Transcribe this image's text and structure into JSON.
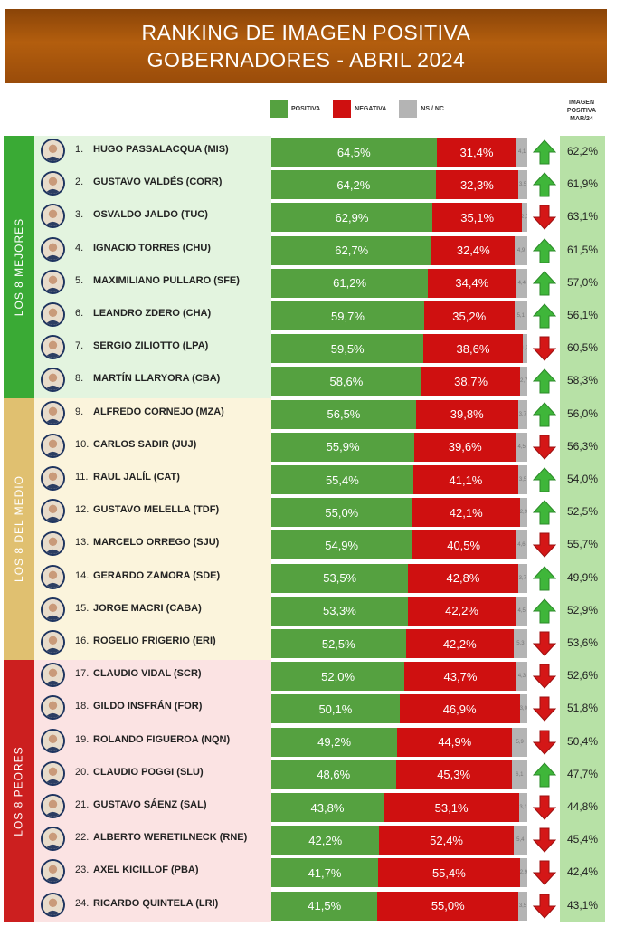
{
  "header": {
    "title_line1": "RANKING DE IMAGEN POSITIVA",
    "title_line2": "GOBERNADORES - ABRIL 2024"
  },
  "colors": {
    "positive": "#55a140",
    "negative": "#cf1010",
    "ns_nc": "#b4b4b4",
    "group_top": "#3aaa35",
    "group_mid": "#e0c070",
    "group_low": "#cc1f1f"
  },
  "groups": [
    {
      "label": "LOS 8 MEJORES",
      "color": "#3aaa35",
      "bg": "#e3f4df"
    },
    {
      "label": "LOS 8 DEL MEDIO",
      "color": "#e0c070",
      "bg": "#fbf4dc"
    },
    {
      "label": "LOS 8 PEORES",
      "color": "#cc1f1f",
      "bg": "#fbe3e3"
    }
  ],
  "chart_data": {
    "type": "bar",
    "stacked": true,
    "orientation": "horizontal",
    "title": "RANKING DE IMAGEN POSITIVA GOBERNADORES - ABRIL 2024",
    "legend": [
      "POSITIVA",
      "NEGATIVA",
      "NS / NC"
    ],
    "prev_column_label": "IMAGEN POSITIVA MAR/24",
    "rows": [
      {
        "rank": "1.",
        "name": "HUGO PASSALACQUA (MIS)",
        "positive": 64.5,
        "negative": 31.4,
        "ns": 4.1,
        "pos_label": "64,5%",
        "neg_label": "31,4%",
        "ns_label": "4,1",
        "trend": "up",
        "prev": "62,2%"
      },
      {
        "rank": "2.",
        "name": "GUSTAVO VALDÉS (CORR)",
        "positive": 64.2,
        "negative": 32.3,
        "ns": 3.5,
        "pos_label": "64,2%",
        "neg_label": "32,3%",
        "ns_label": "3,5",
        "trend": "up",
        "prev": "61,9%"
      },
      {
        "rank": "3.",
        "name": "OSVALDO JALDO (TUC)",
        "positive": 62.9,
        "negative": 35.1,
        "ns": 2.0,
        "pos_label": "62,9%",
        "neg_label": "35,1%",
        "ns_label": "2,0",
        "trend": "down",
        "prev": "63,1%"
      },
      {
        "rank": "4.",
        "name": "IGNACIO TORRES (CHU)",
        "positive": 62.7,
        "negative": 32.4,
        "ns": 4.9,
        "pos_label": "62,7%",
        "neg_label": "32,4%",
        "ns_label": "4,9",
        "trend": "up",
        "prev": "61,5%"
      },
      {
        "rank": "5.",
        "name": "MAXIMILIANO PULLARO (SFE)",
        "positive": 61.2,
        "negative": 34.4,
        "ns": 4.4,
        "pos_label": "61,2%",
        "neg_label": "34,4%",
        "ns_label": "4,4",
        "trend": "up",
        "prev": "57,0%"
      },
      {
        "rank": "6.",
        "name": "LEANDRO ZDERO (CHA)",
        "positive": 59.7,
        "negative": 35.2,
        "ns": 5.1,
        "pos_label": "59,7%",
        "neg_label": "35,2%",
        "ns_label": "5,1",
        "trend": "up",
        "prev": "56,1%"
      },
      {
        "rank": "7.",
        "name": "SERGIO ZILIOTTO (LPA)",
        "positive": 59.5,
        "negative": 38.6,
        "ns": 1.9,
        "pos_label": "59,5%",
        "neg_label": "38,6%",
        "ns_label": "1,9",
        "trend": "down",
        "prev": "60,5%"
      },
      {
        "rank": "8.",
        "name": "MARTÍN LLARYORA (CBA)",
        "positive": 58.6,
        "negative": 38.7,
        "ns": 2.7,
        "pos_label": "58,6%",
        "neg_label": "38,7%",
        "ns_label": "2,7",
        "trend": "up",
        "prev": "58,3%"
      },
      {
        "rank": "9.",
        "name": "ALFREDO CORNEJO (MZA)",
        "positive": 56.5,
        "negative": 39.8,
        "ns": 3.7,
        "pos_label": "56,5%",
        "neg_label": "39,8%",
        "ns_label": "3,7",
        "trend": "up",
        "prev": "56,0%"
      },
      {
        "rank": "10.",
        "name": "CARLOS SADIR (JUJ)",
        "positive": 55.9,
        "negative": 39.6,
        "ns": 4.5,
        "pos_label": "55,9%",
        "neg_label": "39,6%",
        "ns_label": "4,5",
        "trend": "down",
        "prev": "56,3%"
      },
      {
        "rank": "11.",
        "name": "RAUL JALÍL (CAT)",
        "positive": 55.4,
        "negative": 41.1,
        "ns": 3.5,
        "pos_label": "55,4%",
        "neg_label": "41,1%",
        "ns_label": "3,5",
        "trend": "up",
        "prev": "54,0%"
      },
      {
        "rank": "12.",
        "name": "GUSTAVO MELELLA (TDF)",
        "positive": 55.0,
        "negative": 42.1,
        "ns": 2.9,
        "pos_label": "55,0%",
        "neg_label": "42,1%",
        "ns_label": "2,9",
        "trend": "up",
        "prev": "52,5%"
      },
      {
        "rank": "13.",
        "name": "MARCELO ORREGO (SJU)",
        "positive": 54.9,
        "negative": 40.5,
        "ns": 4.6,
        "pos_label": "54,9%",
        "neg_label": "40,5%",
        "ns_label": "4,6",
        "trend": "down",
        "prev": "55,7%"
      },
      {
        "rank": "14.",
        "name": "GERARDO ZAMORA (SDE)",
        "positive": 53.5,
        "negative": 42.8,
        "ns": 3.7,
        "pos_label": "53,5%",
        "neg_label": "42,8%",
        "ns_label": "3,7",
        "trend": "up",
        "prev": "49,9%"
      },
      {
        "rank": "15.",
        "name": "JORGE MACRI (CABA)",
        "positive": 53.3,
        "negative": 42.2,
        "ns": 4.5,
        "pos_label": "53,3%",
        "neg_label": "42,2%",
        "ns_label": "4,5",
        "trend": "up",
        "prev": "52,9%"
      },
      {
        "rank": "16.",
        "name": "ROGELIO FRIGERIO (ERI)",
        "positive": 52.5,
        "negative": 42.2,
        "ns": 5.3,
        "pos_label": "52,5%",
        "neg_label": "42,2%",
        "ns_label": "5,3",
        "trend": "down",
        "prev": "53,6%"
      },
      {
        "rank": "17.",
        "name": "CLAUDIO VIDAL (SCR)",
        "positive": 52.0,
        "negative": 43.7,
        "ns": 4.3,
        "pos_label": "52,0%",
        "neg_label": "43,7%",
        "ns_label": "4,3",
        "trend": "down",
        "prev": "52,6%"
      },
      {
        "rank": "18.",
        "name": "GILDO INSFRÁN (FOR)",
        "positive": 50.1,
        "negative": 46.9,
        "ns": 3.0,
        "pos_label": "50,1%",
        "neg_label": "46,9%",
        "ns_label": "3,0",
        "trend": "down",
        "prev": "51,8%"
      },
      {
        "rank": "19.",
        "name": "ROLANDO FIGUEROA (NQN)",
        "positive": 49.2,
        "negative": 44.9,
        "ns": 5.9,
        "pos_label": "49,2%",
        "neg_label": "44,9%",
        "ns_label": "5,9",
        "trend": "down",
        "prev": "50,4%"
      },
      {
        "rank": "20.",
        "name": "CLAUDIO POGGI (SLU)",
        "positive": 48.6,
        "negative": 45.3,
        "ns": 6.1,
        "pos_label": "48,6%",
        "neg_label": "45,3%",
        "ns_label": "6,1",
        "trend": "up",
        "prev": "47,7%"
      },
      {
        "rank": "21.",
        "name": "GUSTAVO SÁENZ (SAL)",
        "positive": 43.8,
        "negative": 53.1,
        "ns": 3.1,
        "pos_label": "43,8%",
        "neg_label": "53,1%",
        "ns_label": "3,1",
        "trend": "down",
        "prev": "44,8%"
      },
      {
        "rank": "22.",
        "name": "ALBERTO WERETILNECK (RNE)",
        "positive": 42.2,
        "negative": 52.4,
        "ns": 5.4,
        "pos_label": "42,2%",
        "neg_label": "52,4%",
        "ns_label": "5,4",
        "trend": "down",
        "prev": "45,4%"
      },
      {
        "rank": "23.",
        "name": "AXEL KICILLOF (PBA)",
        "positive": 41.7,
        "negative": 55.4,
        "ns": 2.9,
        "pos_label": "41,7%",
        "neg_label": "55,4%",
        "ns_label": "2,9",
        "trend": "down",
        "prev": "42,4%"
      },
      {
        "rank": "24.",
        "name": "RICARDO QUINTELA (LRI)",
        "positive": 41.5,
        "negative": 55.0,
        "ns": 3.5,
        "pos_label": "41,5%",
        "neg_label": "55,0%",
        "ns_label": "3,5",
        "trend": "down",
        "prev": "43,1%"
      }
    ]
  }
}
